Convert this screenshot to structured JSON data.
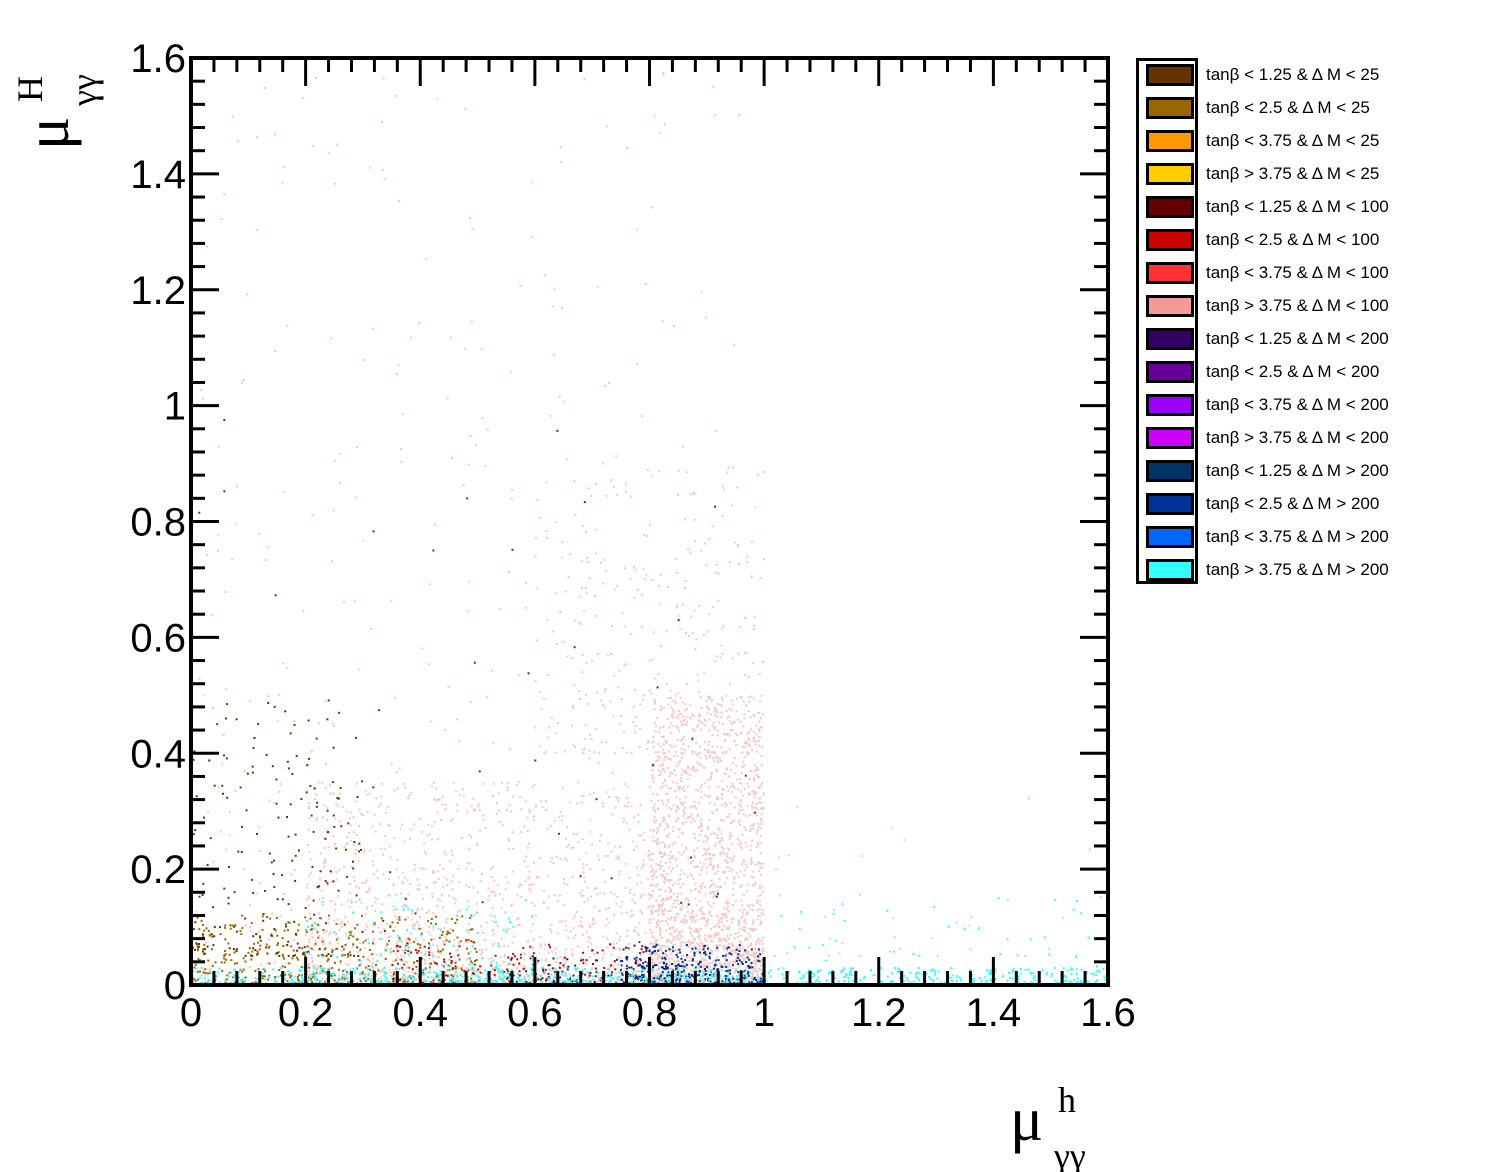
{
  "chart_data": {
    "type": "scatter",
    "title": "",
    "xlabel": {
      "base": "μ",
      "superscript": "h",
      "subscript": "γγ"
    },
    "ylabel": {
      "base": "μ",
      "superscript": "H",
      "subscript": "γγ"
    },
    "xlim": [
      0,
      1.6
    ],
    "ylim": [
      0,
      1.6
    ],
    "x_ticks": [
      "0",
      "0.2",
      "0.4",
      "0.6",
      "0.8",
      "1",
      "1.2",
      "1.4",
      "1.6"
    ],
    "y_ticks": [
      "0",
      "0.2",
      "0.4",
      "0.6",
      "0.8",
      "1",
      "1.2",
      "1.4",
      "1.6"
    ],
    "grid": false,
    "legend_position": "right",
    "series": [
      {
        "name": "tanβ < 1.25 & Δ M < 25",
        "color": "#663300"
      },
      {
        "name": "tanβ < 2.5 & Δ M < 25",
        "color": "#996600"
      },
      {
        "name": "tanβ < 3.75 & Δ M < 25",
        "color": "#ff9900"
      },
      {
        "name": "tanβ > 3.75 & Δ M < 25",
        "color": "#ffcc00"
      },
      {
        "name": "tanβ < 1.25 & Δ M < 100",
        "color": "#660000"
      },
      {
        "name": "tanβ < 2.5 & Δ M < 100",
        "color": "#cc0000"
      },
      {
        "name": "tanβ < 3.75 & Δ M < 100",
        "color": "#ff3333"
      },
      {
        "name": "tanβ > 3.75 & Δ M < 100",
        "color": "#f59a9a"
      },
      {
        "name": "tanβ < 1.25 & Δ M < 200",
        "color": "#330066"
      },
      {
        "name": "tanβ < 2.5 & Δ M < 200",
        "color": "#660099"
      },
      {
        "name": "tanβ < 3.75 & Δ M < 200",
        "color": "#9900ff"
      },
      {
        "name": "tanβ > 3.75 & Δ M < 200",
        "color": "#cc00ff"
      },
      {
        "name": "tanβ < 1.25 & Δ M > 200",
        "color": "#003366"
      },
      {
        "name": "tanβ < 2.5 & Δ M > 200",
        "color": "#003399"
      },
      {
        "name": "tanβ < 3.75 & Δ M > 200",
        "color": "#0066ff"
      },
      {
        "name": "tanβ > 3.75 & Δ M > 200",
        "color": "#33ffff"
      }
    ],
    "point_clouds": [
      {
        "series": 7,
        "color": "#f7c4c4",
        "count": 1800,
        "x": [
          0.8,
          1.0
        ],
        "y": [
          0.0,
          0.5
        ]
      },
      {
        "series": 7,
        "color": "#f7c4c4",
        "count": 1300,
        "x": [
          0.2,
          0.85
        ],
        "y": [
          0.0,
          0.35
        ]
      },
      {
        "series": 7,
        "color": "#f7c4c4",
        "count": 500,
        "x": [
          0.0,
          1.0
        ],
        "y": [
          0.0,
          1.6
        ]
      },
      {
        "series": 7,
        "color": "#f7c4c4",
        "count": 300,
        "x": [
          0.6,
          1.0
        ],
        "y": [
          0.4,
          0.9
        ]
      },
      {
        "series": 7,
        "color": "#f7c4c4",
        "count": 40,
        "x": [
          1.0,
          1.6
        ],
        "y": [
          0.05,
          0.35
        ]
      },
      {
        "series": 1,
        "color": "#996600",
        "count": 500,
        "x": [
          0.0,
          0.5
        ],
        "y": [
          0.0,
          0.12
        ]
      },
      {
        "series": 0,
        "color": "#663300",
        "count": 200,
        "x": [
          0.0,
          0.3
        ],
        "y": [
          0.05,
          0.5
        ]
      },
      {
        "series": 0,
        "color": "#663300",
        "count": 60,
        "x": [
          0.0,
          1.0
        ],
        "y": [
          0.0,
          1.0
        ]
      },
      {
        "series": 5,
        "color": "#cc0000",
        "count": 200,
        "x": [
          0.35,
          0.8
        ],
        "y": [
          0.0,
          0.08
        ]
      },
      {
        "series": 13,
        "color": "#003399",
        "count": 350,
        "x": [
          0.75,
          1.0
        ],
        "y": [
          0.0,
          0.07
        ]
      },
      {
        "series": 12,
        "color": "#003366",
        "count": 120,
        "x": [
          0.55,
          1.0
        ],
        "y": [
          0.0,
          0.05
        ]
      },
      {
        "series": 15,
        "color": "#33ffff",
        "count": 1000,
        "x": [
          0.0,
          1.6
        ],
        "y": [
          0.0,
          0.03
        ]
      },
      {
        "series": 15,
        "color": "#33ffff",
        "count": 150,
        "x": [
          0.2,
          0.6
        ],
        "y": [
          0.0,
          0.15
        ]
      },
      {
        "series": 15,
        "color": "#33ffff",
        "count": 60,
        "x": [
          1.0,
          1.6
        ],
        "y": [
          0.0,
          0.15
        ]
      }
    ]
  }
}
